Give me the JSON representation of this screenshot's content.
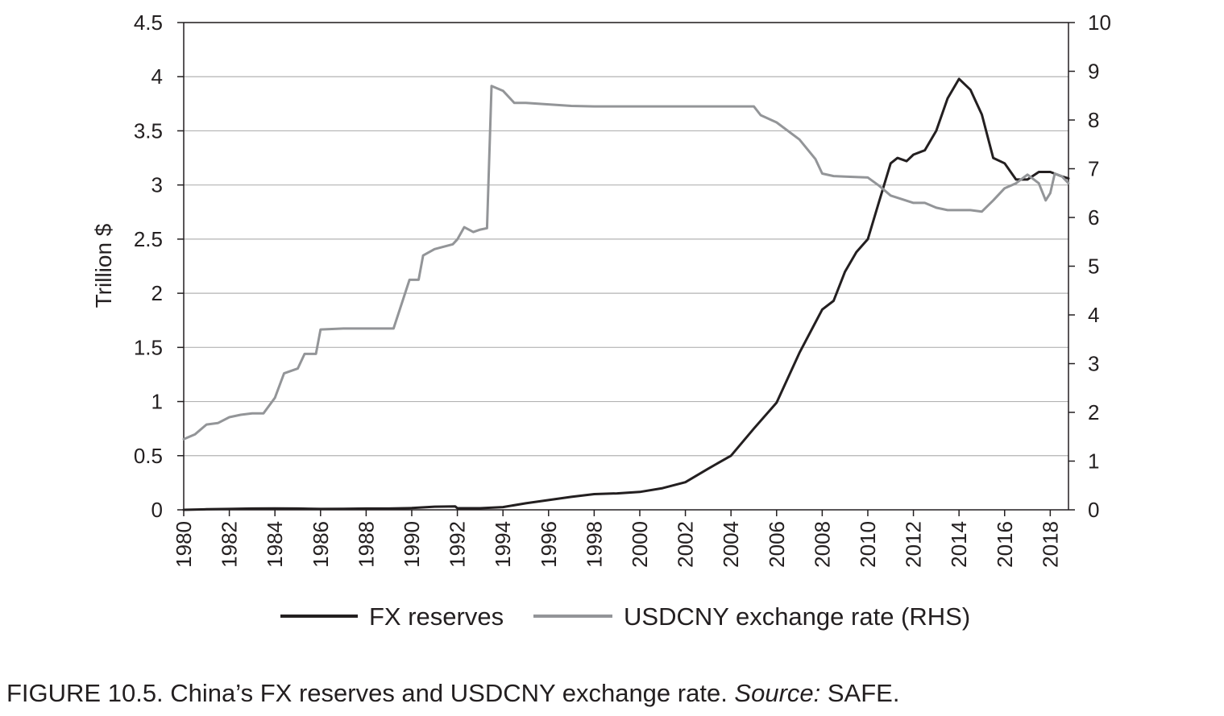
{
  "chart_data": {
    "type": "line",
    "ylabel": "Trillion $",
    "ylim": [
      0,
      4.5
    ],
    "yticks": [
      "0",
      "0.5",
      "1",
      "1.5",
      "2",
      "2.5",
      "3",
      "3.5",
      "4",
      "4.5"
    ],
    "y2lim": [
      0,
      10
    ],
    "y2ticks": [
      "0",
      "1",
      "2",
      "3",
      "4",
      "5",
      "6",
      "7",
      "8",
      "9",
      "10"
    ],
    "xlim": [
      1980,
      2018.8
    ],
    "xticks": [
      "1980",
      "1982",
      "1984",
      "1986",
      "1988",
      "1990",
      "1992",
      "1994",
      "1996",
      "1998",
      "2000",
      "2002",
      "2004",
      "2006",
      "2008",
      "2010",
      "2012",
      "2014",
      "2016",
      "2018"
    ],
    "grid": "horizontal",
    "legend_position": "bottom",
    "series": [
      {
        "name": "FX reserves",
        "axis": "left",
        "color": "#231f20",
        "points": [
          [
            1980,
            0.0
          ],
          [
            1981,
            0.005
          ],
          [
            1982,
            0.008
          ],
          [
            1983,
            0.012
          ],
          [
            1984,
            0.013
          ],
          [
            1985,
            0.012
          ],
          [
            1986,
            0.008
          ],
          [
            1987,
            0.01
          ],
          [
            1988,
            0.012
          ],
          [
            1989,
            0.012
          ],
          [
            1990,
            0.016
          ],
          [
            1991,
            0.029
          ],
          [
            1991.9,
            0.032
          ],
          [
            1992,
            0.015
          ],
          [
            1993,
            0.015
          ],
          [
            1994,
            0.025
          ],
          [
            1995,
            0.06
          ],
          [
            1996,
            0.09
          ],
          [
            1997,
            0.12
          ],
          [
            1998,
            0.145
          ],
          [
            1999,
            0.152
          ],
          [
            2000,
            0.165
          ],
          [
            2001,
            0.2
          ],
          [
            2002,
            0.255
          ],
          [
            2003,
            0.38
          ],
          [
            2004,
            0.5
          ],
          [
            2005,
            0.75
          ],
          [
            2006,
            0.99
          ],
          [
            2007,
            1.45
          ],
          [
            2008,
            1.85
          ],
          [
            2008.5,
            1.93
          ],
          [
            2009,
            2.2
          ],
          [
            2009.5,
            2.38
          ],
          [
            2010,
            2.5
          ],
          [
            2010.5,
            2.85
          ],
          [
            2011,
            3.2
          ],
          [
            2011.3,
            3.25
          ],
          [
            2011.7,
            3.22
          ],
          [
            2012,
            3.28
          ],
          [
            2012.5,
            3.32
          ],
          [
            2013,
            3.5
          ],
          [
            2013.5,
            3.8
          ],
          [
            2014,
            3.98
          ],
          [
            2014.5,
            3.88
          ],
          [
            2015,
            3.65
          ],
          [
            2015.5,
            3.25
          ],
          [
            2016,
            3.2
          ],
          [
            2016.5,
            3.05
          ],
          [
            2017,
            3.05
          ],
          [
            2017.5,
            3.12
          ],
          [
            2018,
            3.12
          ],
          [
            2018.5,
            3.08
          ],
          [
            2018.8,
            3.06
          ]
        ]
      },
      {
        "name": "USDCNY exchange rate (RHS)",
        "axis": "right",
        "color": "#939598",
        "points": [
          [
            1980,
            1.45
          ],
          [
            1980.5,
            1.55
          ],
          [
            1981,
            1.75
          ],
          [
            1981.5,
            1.78
          ],
          [
            1982,
            1.9
          ],
          [
            1982.5,
            1.95
          ],
          [
            1983,
            1.98
          ],
          [
            1983.5,
            1.98
          ],
          [
            1984,
            2.3
          ],
          [
            1984.4,
            2.8
          ],
          [
            1985,
            2.9
          ],
          [
            1985.3,
            3.2
          ],
          [
            1985.8,
            3.2
          ],
          [
            1986,
            3.7
          ],
          [
            1987,
            3.72
          ],
          [
            1988,
            3.72
          ],
          [
            1989,
            3.72
          ],
          [
            1989.2,
            3.72
          ],
          [
            1989.9,
            4.72
          ],
          [
            1990.3,
            4.72
          ],
          [
            1990.5,
            5.22
          ],
          [
            1991,
            5.35
          ],
          [
            1991.8,
            5.45
          ],
          [
            1992,
            5.55
          ],
          [
            1992.3,
            5.8
          ],
          [
            1992.7,
            5.7
          ],
          [
            1993,
            5.75
          ],
          [
            1993.3,
            5.78
          ],
          [
            1993.5,
            8.7
          ],
          [
            1994,
            8.6
          ],
          [
            1994.5,
            8.35
          ],
          [
            1995,
            8.35
          ],
          [
            1996,
            8.32
          ],
          [
            1997,
            8.29
          ],
          [
            1998,
            8.28
          ],
          [
            1999,
            8.28
          ],
          [
            2000,
            8.28
          ],
          [
            2001,
            8.28
          ],
          [
            2002,
            8.28
          ],
          [
            2003,
            8.28
          ],
          [
            2004,
            8.28
          ],
          [
            2005,
            8.28
          ],
          [
            2005.3,
            8.1
          ],
          [
            2006,
            7.95
          ],
          [
            2007,
            7.6
          ],
          [
            2007.7,
            7.2
          ],
          [
            2008,
            6.9
          ],
          [
            2008.5,
            6.85
          ],
          [
            2009,
            6.84
          ],
          [
            2010,
            6.82
          ],
          [
            2010.5,
            6.65
          ],
          [
            2011,
            6.45
          ],
          [
            2012,
            6.3
          ],
          [
            2012.5,
            6.3
          ],
          [
            2013,
            6.2
          ],
          [
            2013.5,
            6.15
          ],
          [
            2014,
            6.15
          ],
          [
            2014.5,
            6.15
          ],
          [
            2015,
            6.12
          ],
          [
            2015.5,
            6.35
          ],
          [
            2016,
            6.6
          ],
          [
            2016.5,
            6.7
          ],
          [
            2017,
            6.88
          ],
          [
            2017.5,
            6.7
          ],
          [
            2017.8,
            6.35
          ],
          [
            2018,
            6.5
          ],
          [
            2018.2,
            6.9
          ],
          [
            2018.5,
            6.85
          ],
          [
            2018.8,
            6.7
          ]
        ]
      }
    ]
  },
  "caption": {
    "main": "FIGURE 10.5. China’s FX reserves and USDCNY exchange rate. ",
    "source_label": "Source:",
    "source_value": " SAFE."
  }
}
